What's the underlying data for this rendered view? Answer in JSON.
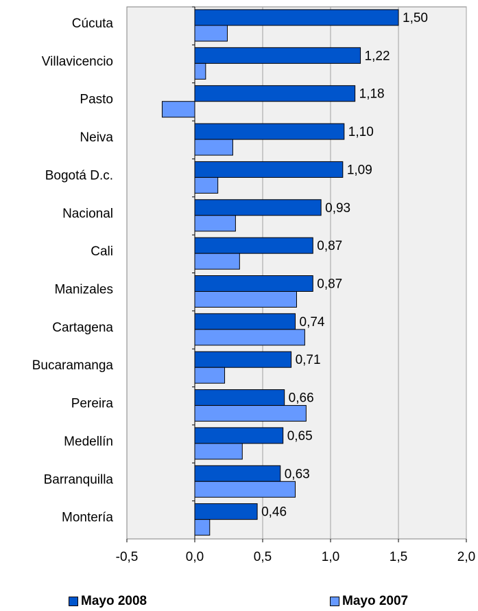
{
  "chart_data": {
    "type": "bar",
    "orientation": "horizontal",
    "categories": [
      "Cúcuta",
      "Villavicencio",
      "Pasto",
      "Neiva",
      "Bogotá D.c.",
      "Nacional",
      "Cali",
      "Manizales",
      "Cartagena",
      "Bucaramanga",
      "Pereira",
      "Medellín",
      "Barranquilla",
      "Montería"
    ],
    "series": [
      {
        "name": "Mayo 2008",
        "color": "#0055cc",
        "values": [
          1.5,
          1.22,
          1.18,
          1.1,
          1.09,
          0.93,
          0.87,
          0.87,
          0.74,
          0.71,
          0.66,
          0.65,
          0.63,
          0.46
        ],
        "data_labels": [
          "1,50",
          "1,22",
          "1,18",
          "1,10",
          "1,09",
          "0,93",
          "0,87",
          "0,87",
          "0,74",
          "0,71",
          "0,66",
          "0,65",
          "0,63",
          "0,46"
        ]
      },
      {
        "name": "Mayo 2007",
        "color": "#6699ff",
        "values": [
          0.24,
          0.08,
          -0.24,
          0.28,
          0.17,
          0.3,
          0.33,
          0.75,
          0.81,
          0.22,
          0.82,
          0.35,
          0.74,
          0.11
        ]
      }
    ],
    "xlim": [
      -0.5,
      2.0
    ],
    "x_ticks": [
      -0.5,
      0.0,
      0.5,
      1.0,
      1.5,
      2.0
    ],
    "x_tick_labels": [
      "-0,5",
      "0,0",
      "0,5",
      "1,0",
      "1,5",
      "2,0"
    ],
    "grid": true,
    "legend_position": "bottom",
    "plot_background": "#f0f0f0"
  }
}
